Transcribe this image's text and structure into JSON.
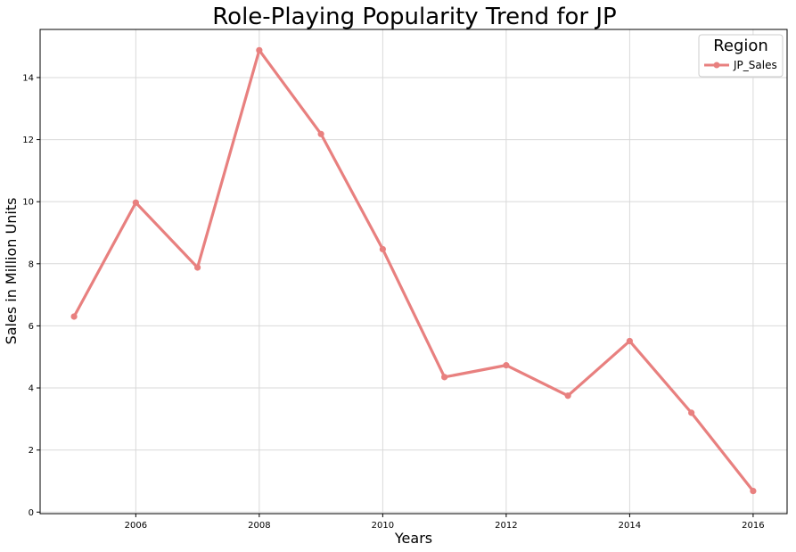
{
  "chart_data": {
    "type": "line",
    "title": "Role-Playing Popularity Trend for JP",
    "xlabel": "Years",
    "ylabel": "Sales in Million Units",
    "xlim": [
      2004.45,
      2016.55
    ],
    "ylim": [
      -0.05,
      15.55
    ],
    "x_ticks": [
      2006,
      2008,
      2010,
      2012,
      2014,
      2016
    ],
    "y_ticks": [
      0,
      2,
      4,
      6,
      8,
      10,
      12,
      14
    ],
    "grid": true,
    "legend": {
      "title": "Region",
      "placement": "top-right"
    },
    "x": [
      2005,
      2006,
      2007,
      2008,
      2009,
      2010,
      2011,
      2012,
      2013,
      2014,
      2015,
      2016
    ],
    "series": [
      {
        "name": "JP_Sales",
        "color": "#e8807f",
        "values": [
          6.3,
          9.97,
          7.88,
          14.88,
          12.18,
          8.47,
          4.35,
          4.73,
          3.75,
          5.51,
          3.2,
          0.68
        ]
      }
    ]
  }
}
